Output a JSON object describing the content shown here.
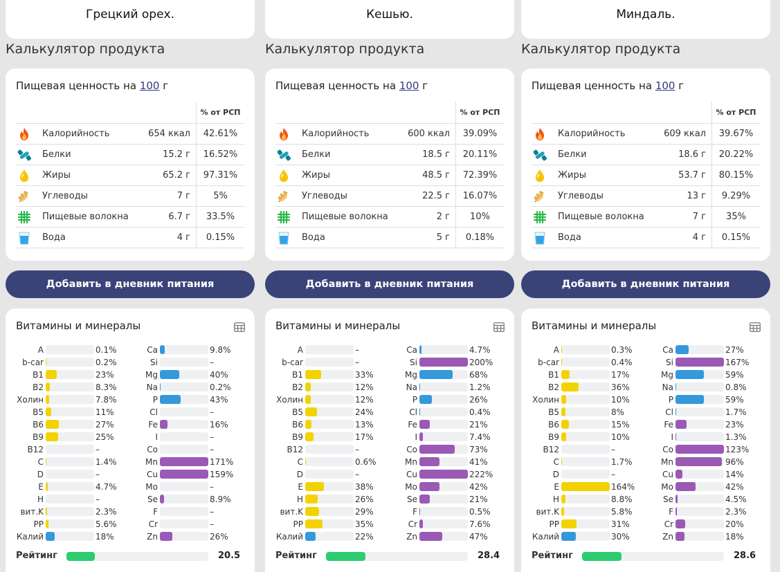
{
  "section_title": "Калькулятор продукта",
  "nutrition_header": {
    "prefix": "Пищевая ценность на",
    "amount": "100",
    "unit": "г"
  },
  "pct_header": "% от РСП",
  "add_button_label": "Добавить в дневник питания",
  "vitamins_title": "Витамины и минералы",
  "rating_label": "Рейтинг",
  "colors": {
    "vitamin": "#f2d300",
    "mineral_blue": "#3498db",
    "mineral_purple": "#9b59b6",
    "rating": "#2ecc71",
    "button": "#3a4378"
  },
  "icons": [
    "flame-icon",
    "protein-icon",
    "fat-drop-icon",
    "grain-icon",
    "fiber-grid-icon",
    "water-glass-icon"
  ],
  "products": [
    {
      "name": "Грецкий орех.",
      "nutrients": [
        {
          "name": "Калорийность",
          "value": "654 ккал",
          "pct": "42.61%"
        },
        {
          "name": "Белки",
          "value": "15.2 г",
          "pct": "16.52%"
        },
        {
          "name": "Жиры",
          "value": "65.2 г",
          "pct": "97.31%"
        },
        {
          "name": "Углеводы",
          "value": "7 г",
          "pct": "5%"
        },
        {
          "name": "Пищевые волокна",
          "value": "6.7 г",
          "pct": "33.5%"
        },
        {
          "name": "Вода",
          "value": "4 г",
          "pct": "0.15%"
        }
      ],
      "vitamins": [
        {
          "label": "A",
          "value": "0.1%",
          "fill": 0.1
        },
        {
          "label": "b-car",
          "value": "0.2%",
          "fill": 0.2
        },
        {
          "label": "B1",
          "value": "23%",
          "fill": 23
        },
        {
          "label": "B2",
          "value": "8.3%",
          "fill": 8.3
        },
        {
          "label": "Холин",
          "value": "7.8%",
          "fill": 7.8
        },
        {
          "label": "B5",
          "value": "11%",
          "fill": 11
        },
        {
          "label": "B6",
          "value": "27%",
          "fill": 27
        },
        {
          "label": "B9",
          "value": "25%",
          "fill": 25
        },
        {
          "label": "B12",
          "value": "–",
          "fill": 0
        },
        {
          "label": "C",
          "value": "1.4%",
          "fill": 1.4
        },
        {
          "label": "D",
          "value": "–",
          "fill": 0
        },
        {
          "label": "E",
          "value": "4.7%",
          "fill": 4.7
        },
        {
          "label": "H",
          "value": "–",
          "fill": 0
        },
        {
          "label": "вит.K",
          "value": "2.3%",
          "fill": 2.3
        },
        {
          "label": "PP",
          "value": "5.6%",
          "fill": 5.6
        },
        {
          "label": "Калий",
          "value": "18%",
          "fill": 18,
          "kind": "blue"
        }
      ],
      "minerals": [
        {
          "label": "Ca",
          "value": "9.8%",
          "fill": 9.8,
          "kind": "blue"
        },
        {
          "label": "Si",
          "value": "–",
          "fill": 0,
          "kind": "purple"
        },
        {
          "label": "Mg",
          "value": "40%",
          "fill": 40,
          "kind": "blue"
        },
        {
          "label": "Na",
          "value": "0.2%",
          "fill": 0.2,
          "kind": "blue"
        },
        {
          "label": "P",
          "value": "43%",
          "fill": 43,
          "kind": "blue"
        },
        {
          "label": "Cl",
          "value": "–",
          "fill": 0,
          "kind": "blue"
        },
        {
          "label": "Fe",
          "value": "16%",
          "fill": 16,
          "kind": "purple"
        },
        {
          "label": "I",
          "value": "–",
          "fill": 0,
          "kind": "purple"
        },
        {
          "label": "Co",
          "value": "–",
          "fill": 0,
          "kind": "purple"
        },
        {
          "label": "Mn",
          "value": "171%",
          "fill": 171,
          "kind": "purple"
        },
        {
          "label": "Cu",
          "value": "159%",
          "fill": 159,
          "kind": "purple"
        },
        {
          "label": "Mo",
          "value": "–",
          "fill": 0,
          "kind": "purple"
        },
        {
          "label": "Se",
          "value": "8.9%",
          "fill": 8.9,
          "kind": "purple"
        },
        {
          "label": "F",
          "value": "–",
          "fill": 0,
          "kind": "purple"
        },
        {
          "label": "Cr",
          "value": "–",
          "fill": 0,
          "kind": "purple"
        },
        {
          "label": "Zn",
          "value": "26%",
          "fill": 26,
          "kind": "purple"
        }
      ],
      "rating": "20.5",
      "rating_fill": 0.2
    },
    {
      "name": "Кешью.",
      "nutrients": [
        {
          "name": "Калорийность",
          "value": "600 ккал",
          "pct": "39.09%"
        },
        {
          "name": "Белки",
          "value": "18.5 г",
          "pct": "20.11%"
        },
        {
          "name": "Жиры",
          "value": "48.5 г",
          "pct": "72.39%"
        },
        {
          "name": "Углеводы",
          "value": "22.5 г",
          "pct": "16.07%"
        },
        {
          "name": "Пищевые волокна",
          "value": "2 г",
          "pct": "10%"
        },
        {
          "name": "Вода",
          "value": "5 г",
          "pct": "0.18%"
        }
      ],
      "vitamins": [
        {
          "label": "A",
          "value": "–",
          "fill": 0
        },
        {
          "label": "b-car",
          "value": "–",
          "fill": 0
        },
        {
          "label": "B1",
          "value": "33%",
          "fill": 33
        },
        {
          "label": "B2",
          "value": "12%",
          "fill": 12
        },
        {
          "label": "Холин",
          "value": "12%",
          "fill": 12
        },
        {
          "label": "B5",
          "value": "24%",
          "fill": 24
        },
        {
          "label": "B6",
          "value": "13%",
          "fill": 13
        },
        {
          "label": "B9",
          "value": "17%",
          "fill": 17
        },
        {
          "label": "B12",
          "value": "–",
          "fill": 0
        },
        {
          "label": "C",
          "value": "0.6%",
          "fill": 0.6
        },
        {
          "label": "D",
          "value": "–",
          "fill": 0
        },
        {
          "label": "E",
          "value": "38%",
          "fill": 38
        },
        {
          "label": "H",
          "value": "26%",
          "fill": 26
        },
        {
          "label": "вит.K",
          "value": "29%",
          "fill": 29
        },
        {
          "label": "PP",
          "value": "35%",
          "fill": 35
        },
        {
          "label": "Калий",
          "value": "22%",
          "fill": 22,
          "kind": "blue"
        }
      ],
      "minerals": [
        {
          "label": "Ca",
          "value": "4.7%",
          "fill": 4.7,
          "kind": "blue"
        },
        {
          "label": "Si",
          "value": "200%",
          "fill": 200,
          "kind": "purple"
        },
        {
          "label": "Mg",
          "value": "68%",
          "fill": 68,
          "kind": "blue"
        },
        {
          "label": "Na",
          "value": "1.2%",
          "fill": 1.2,
          "kind": "blue"
        },
        {
          "label": "P",
          "value": "26%",
          "fill": 26,
          "kind": "blue"
        },
        {
          "label": "Cl",
          "value": "0.4%",
          "fill": 0.4,
          "kind": "blue"
        },
        {
          "label": "Fe",
          "value": "21%",
          "fill": 21,
          "kind": "purple"
        },
        {
          "label": "I",
          "value": "7.4%",
          "fill": 7.4,
          "kind": "purple"
        },
        {
          "label": "Co",
          "value": "73%",
          "fill": 73,
          "kind": "purple"
        },
        {
          "label": "Mn",
          "value": "41%",
          "fill": 41,
          "kind": "purple"
        },
        {
          "label": "Cu",
          "value": "222%",
          "fill": 222,
          "kind": "purple"
        },
        {
          "label": "Mo",
          "value": "42%",
          "fill": 42,
          "kind": "purple"
        },
        {
          "label": "Se",
          "value": "21%",
          "fill": 21,
          "kind": "purple"
        },
        {
          "label": "F",
          "value": "0.5%",
          "fill": 0.5,
          "kind": "purple"
        },
        {
          "label": "Cr",
          "value": "7.6%",
          "fill": 7.6,
          "kind": "purple"
        },
        {
          "label": "Zn",
          "value": "47%",
          "fill": 47,
          "kind": "purple"
        }
      ],
      "rating": "28.4",
      "rating_fill": 0.28
    },
    {
      "name": "Миндаль.",
      "nutrients": [
        {
          "name": "Калорийность",
          "value": "609 ккал",
          "pct": "39.67%"
        },
        {
          "name": "Белки",
          "value": "18.6 г",
          "pct": "20.22%"
        },
        {
          "name": "Жиры",
          "value": "53.7 г",
          "pct": "80.15%"
        },
        {
          "name": "Углеводы",
          "value": "13 г",
          "pct": "9.29%"
        },
        {
          "name": "Пищевые волокна",
          "value": "7 г",
          "pct": "35%"
        },
        {
          "name": "Вода",
          "value": "4 г",
          "pct": "0.15%"
        }
      ],
      "vitamins": [
        {
          "label": "A",
          "value": "0.3%",
          "fill": 0.3
        },
        {
          "label": "b-car",
          "value": "0.4%",
          "fill": 0.4
        },
        {
          "label": "B1",
          "value": "17%",
          "fill": 17
        },
        {
          "label": "B2",
          "value": "36%",
          "fill": 36
        },
        {
          "label": "Холин",
          "value": "10%",
          "fill": 10
        },
        {
          "label": "B5",
          "value": "8%",
          "fill": 8
        },
        {
          "label": "B6",
          "value": "15%",
          "fill": 15
        },
        {
          "label": "B9",
          "value": "10%",
          "fill": 10
        },
        {
          "label": "B12",
          "value": "–",
          "fill": 0
        },
        {
          "label": "C",
          "value": "1.7%",
          "fill": 1.7
        },
        {
          "label": "D",
          "value": "–",
          "fill": 0
        },
        {
          "label": "E",
          "value": "164%",
          "fill": 164
        },
        {
          "label": "H",
          "value": "8.8%",
          "fill": 8.8
        },
        {
          "label": "вит.K",
          "value": "5.8%",
          "fill": 5.8
        },
        {
          "label": "PP",
          "value": "31%",
          "fill": 31
        },
        {
          "label": "Калий",
          "value": "30%",
          "fill": 30,
          "kind": "blue"
        }
      ],
      "minerals": [
        {
          "label": "Ca",
          "value": "27%",
          "fill": 27,
          "kind": "blue"
        },
        {
          "label": "Si",
          "value": "167%",
          "fill": 167,
          "kind": "purple"
        },
        {
          "label": "Mg",
          "value": "59%",
          "fill": 59,
          "kind": "blue"
        },
        {
          "label": "Na",
          "value": "0.8%",
          "fill": 0.8,
          "kind": "blue"
        },
        {
          "label": "P",
          "value": "59%",
          "fill": 59,
          "kind": "blue"
        },
        {
          "label": "Cl",
          "value": "1.7%",
          "fill": 1.7,
          "kind": "blue"
        },
        {
          "label": "Fe",
          "value": "23%",
          "fill": 23,
          "kind": "purple"
        },
        {
          "label": "I",
          "value": "1.3%",
          "fill": 1.3,
          "kind": "purple"
        },
        {
          "label": "Co",
          "value": "123%",
          "fill": 123,
          "kind": "purple"
        },
        {
          "label": "Mn",
          "value": "96%",
          "fill": 96,
          "kind": "purple"
        },
        {
          "label": "Cu",
          "value": "14%",
          "fill": 14,
          "kind": "purple"
        },
        {
          "label": "Mo",
          "value": "42%",
          "fill": 42,
          "kind": "purple"
        },
        {
          "label": "Se",
          "value": "4.5%",
          "fill": 4.5,
          "kind": "purple"
        },
        {
          "label": "F",
          "value": "2.3%",
          "fill": 2.3,
          "kind": "purple"
        },
        {
          "label": "Cr",
          "value": "20%",
          "fill": 20,
          "kind": "purple"
        },
        {
          "label": "Zn",
          "value": "18%",
          "fill": 18,
          "kind": "purple"
        }
      ],
      "rating": "28.6",
      "rating_fill": 0.28
    }
  ]
}
